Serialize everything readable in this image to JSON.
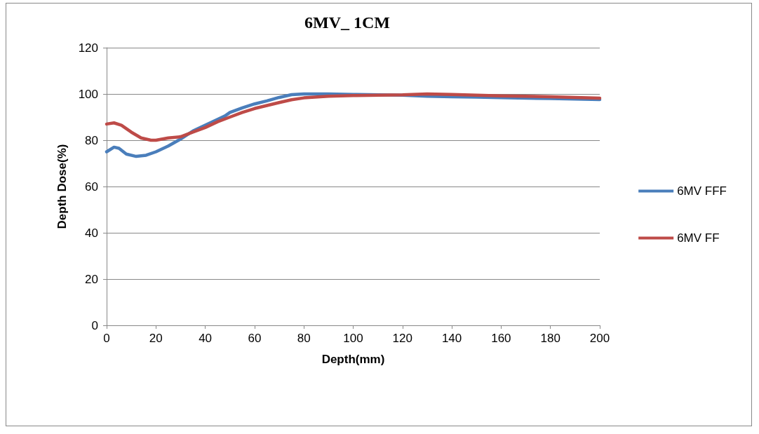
{
  "chart_data": {
    "type": "line",
    "title": "6MV_ 1CM",
    "xlabel": "Depth(mm)",
    "ylabel": "Depth Dose(%)",
    "xlim": [
      0,
      200
    ],
    "xticks": [
      0,
      20,
      40,
      60,
      80,
      100,
      120,
      140,
      160,
      180,
      200
    ],
    "ylim": [
      0,
      120
    ],
    "yticks": [
      0,
      20,
      40,
      60,
      80,
      100,
      120
    ],
    "grid": "y",
    "legend": "right",
    "marker": "none",
    "line_style": "solid",
    "series": [
      {
        "name": "6MV FFF",
        "color": "#4a7ebb",
        "x": [
          0,
          3,
          5,
          8,
          12,
          16,
          20,
          25,
          30,
          35,
          40,
          45,
          48,
          50,
          55,
          60,
          65,
          70,
          75,
          80,
          90,
          100,
          120,
          130,
          140,
          150,
          160,
          180,
          200
        ],
        "values": [
          75,
          77,
          76.5,
          74,
          73,
          73.5,
          75,
          77.5,
          80.5,
          84,
          86.5,
          89,
          90.5,
          92,
          94,
          95.7,
          97,
          98.5,
          99.7,
          100,
          100,
          99.8,
          99.5,
          99,
          98.8,
          98.6,
          98.4,
          98,
          97.6
        ]
      },
      {
        "name": "6MV FF",
        "color": "#be4b48",
        "x": [
          0,
          3,
          6,
          10,
          14,
          18,
          20,
          25,
          30,
          35,
          40,
          45,
          50,
          55,
          60,
          65,
          70,
          75,
          80,
          90,
          100,
          120,
          130,
          140,
          150,
          160,
          180,
          200
        ],
        "values": [
          87,
          87.5,
          86.5,
          83.5,
          81,
          80,
          80,
          81,
          81.5,
          83.5,
          85.5,
          88,
          90,
          92,
          93.7,
          95,
          96.3,
          97.5,
          98.3,
          99,
          99.3,
          99.6,
          100,
          99.8,
          99.5,
          99.2,
          98.8,
          98.2
        ]
      }
    ]
  }
}
